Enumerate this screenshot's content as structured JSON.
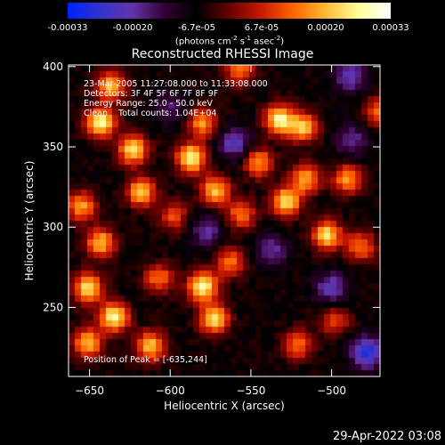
{
  "colorbar": {
    "ticks": [
      "-0.00033",
      "-0.00020",
      "-6.7e-05",
      "6.7e-05",
      "0.00020",
      "0.00033"
    ],
    "units_main": "(photons cm",
    "units_sup1": "-2",
    "units_mid": " s",
    "units_sup2": "-1",
    "units_end": " asec",
    "units_sup3": "-2",
    "units_close": ")",
    "range": [
      -0.00033,
      0.00033
    ]
  },
  "chart_data": {
    "type": "heatmap",
    "title": "Reconstructed RHESSI Image",
    "xlabel": "Heliocentric X (arcsec)",
    "ylabel": "Heliocentric Y (arcsec)",
    "xlim": [
      -663,
      -470
    ],
    "ylim": [
      207,
      401
    ],
    "x_ticks": [
      -650,
      -600,
      -550,
      -500
    ],
    "y_ticks": [
      250,
      300,
      350,
      400
    ],
    "x_tick_labels": [
      "−650",
      "−600",
      "−550",
      "−500"
    ],
    "y_tick_labels": [
      "250",
      "300",
      "350",
      "400"
    ],
    "colormap": "rhessi-red-temperature",
    "colormap_colors": [
      "#0022ff",
      "#3333cc",
      "#6633aa",
      "#330033",
      "#000000",
      "#660000",
      "#cc1a00",
      "#ff6600",
      "#ffbb33",
      "#ffff99",
      "#ffffff"
    ],
    "annotations": [
      "23-Mar-2005 11:27:08.000 to 11:33:08.000",
      "Detectors: 3F 4F 5F 6F 7F 8F 9F",
      "Energy Range: 25.0 - 50.0 keV",
      "Clean    Total counts: 1.04E+04"
    ],
    "peak_label": "Position of Peak = [-635,244]",
    "peak_position": [
      -635,
      244
    ],
    "hot_spots": [
      {
        "x": -643,
        "y": 365,
        "v": 1.0
      },
      {
        "x": -637,
        "y": 388,
        "v": 0.8
      },
      {
        "x": -623,
        "y": 348,
        "v": 0.9
      },
      {
        "x": -618,
        "y": 322,
        "v": 0.8
      },
      {
        "x": -655,
        "y": 313,
        "v": 0.7
      },
      {
        "x": -643,
        "y": 290,
        "v": 0.8
      },
      {
        "x": -651,
        "y": 262,
        "v": 0.9
      },
      {
        "x": -635,
        "y": 244,
        "v": 1.0
      },
      {
        "x": -651,
        "y": 228,
        "v": 0.8
      },
      {
        "x": -612,
        "y": 226,
        "v": 0.8
      },
      {
        "x": -607,
        "y": 268,
        "v": 0.6
      },
      {
        "x": -598,
        "y": 307,
        "v": 0.5
      },
      {
        "x": -587,
        "y": 343,
        "v": 1.0
      },
      {
        "x": -580,
        "y": 365,
        "v": 0.7
      },
      {
        "x": -572,
        "y": 323,
        "v": 0.8
      },
      {
        "x": -580,
        "y": 263,
        "v": 1.0
      },
      {
        "x": -573,
        "y": 243,
        "v": 0.9
      },
      {
        "x": -563,
        "y": 278,
        "v": 0.6
      },
      {
        "x": -556,
        "y": 308,
        "v": 0.6
      },
      {
        "x": -557,
        "y": 398,
        "v": 0.6
      },
      {
        "x": -545,
        "y": 340,
        "v": 0.7
      },
      {
        "x": -532,
        "y": 367,
        "v": 1.0
      },
      {
        "x": -517,
        "y": 362,
        "v": 0.8
      },
      {
        "x": -528,
        "y": 316,
        "v": 0.9
      },
      {
        "x": -516,
        "y": 330,
        "v": 0.7
      },
      {
        "x": -490,
        "y": 330,
        "v": 0.7
      },
      {
        "x": -503,
        "y": 295,
        "v": 0.9
      },
      {
        "x": -482,
        "y": 288,
        "v": 0.6
      },
      {
        "x": -521,
        "y": 227,
        "v": 0.6
      },
      {
        "x": -498,
        "y": 242,
        "v": 0.5
      },
      {
        "x": -470,
        "y": 372,
        "v": 0.6
      }
    ],
    "cold_spots": [
      {
        "x": -577,
        "y": 297,
        "v": -0.4
      },
      {
        "x": -560,
        "y": 352,
        "v": -0.5
      },
      {
        "x": -488,
        "y": 394,
        "v": -0.5
      },
      {
        "x": -500,
        "y": 262,
        "v": -0.5
      },
      {
        "x": -478,
        "y": 222,
        "v": -0.7
      },
      {
        "x": -537,
        "y": 285,
        "v": -0.4
      },
      {
        "x": -600,
        "y": 374,
        "v": -0.3
      },
      {
        "x": -488,
        "y": 354,
        "v": -0.4
      }
    ]
  },
  "footer": {
    "timestamp": "29-Apr-2022 03:08"
  }
}
